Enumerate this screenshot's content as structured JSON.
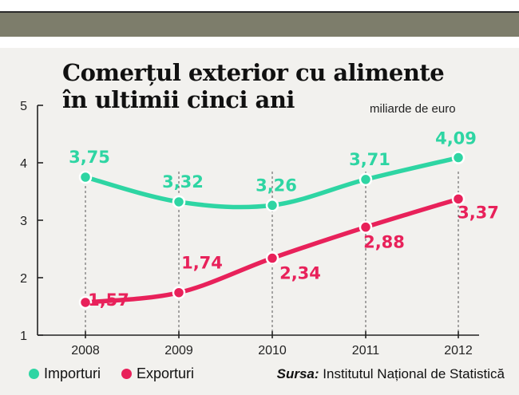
{
  "chart_data": {
    "type": "line",
    "title": "Comerțul exterior cu alimente",
    "title_line2": "în ultimii cinci ani",
    "unit": "miliarde de euro",
    "x": [
      "2008",
      "2009",
      "2010",
      "2011",
      "2012"
    ],
    "ylim": [
      1,
      5
    ],
    "yticks": [
      "1",
      "2",
      "3",
      "4",
      "5"
    ],
    "series": [
      {
        "name": "Importuri",
        "color": "#2ed5a3",
        "values": [
          3.75,
          3.32,
          3.26,
          3.71,
          4.09
        ],
        "labels": [
          "3,75",
          "3,32",
          "3,26",
          "3,71",
          "4,09"
        ]
      },
      {
        "name": "Exporturi",
        "color": "#e8215a",
        "values": [
          1.57,
          1.74,
          2.34,
          2.88,
          3.37
        ],
        "labels": [
          "1,57",
          "1,74",
          "2,34",
          "2,88",
          "3,37"
        ]
      }
    ],
    "grid": "vertical dashed lines at each year",
    "legend": "bottom-left"
  },
  "legend": {
    "importuri": "Importuri",
    "exporturi": "Exporturi"
  },
  "source": {
    "label": "Sursa:",
    "text": "Institutul Național de Statistică"
  }
}
